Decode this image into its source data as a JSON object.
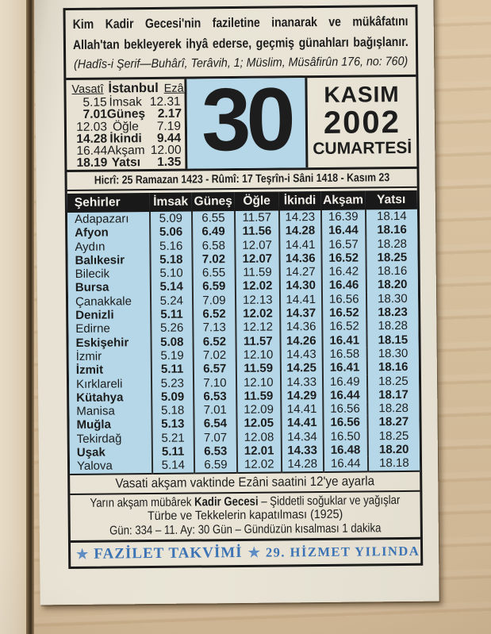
{
  "hadith": {
    "line1": "Kim Kadir Gecesi'nin faziletine inanarak ve mükâfatını",
    "line2": "Allah'tan bekleyerek ihyâ ederse, geçmiş günahları bağışlanır.",
    "source": "(Hadîs-i Şerif—Buhârî, Terâvih, 1; Müslim, Müsâfirûn 176, no: 760)"
  },
  "istanbul": {
    "col_left": "Vasatî",
    "col_mid": "İstanbul",
    "col_right": "Ezânî",
    "rows": [
      {
        "vasati": "5.15",
        "name": "İmsak",
        "ezani": "12.31",
        "bold": false
      },
      {
        "vasati": "7.01",
        "name": "Güneş",
        "ezani": "2.17",
        "bold": true
      },
      {
        "vasati": "12.03",
        "name": "Öğle",
        "ezani": "7.19",
        "bold": false
      },
      {
        "vasati": "14.28",
        "name": "İkindi",
        "ezani": "9.44",
        "bold": true
      },
      {
        "vasati": "16.44",
        "name": "Akşam",
        "ezani": "12.00",
        "bold": false
      },
      {
        "vasati": "18.19",
        "name": "Yatsı",
        "ezani": "1.35",
        "bold": true
      }
    ]
  },
  "date": {
    "day": "30",
    "month": "KASIM",
    "year": "2002",
    "weekday": "CUMARTESİ"
  },
  "hicri_line": "Hicrî: 25 Ramazan 1423 - Rûmî: 17 Teşrîn-i Sâni 1418 - Kasım 23",
  "cities": {
    "headers": [
      "Şehirler",
      "İmsak",
      "Güneş",
      "Öğle",
      "İkindi",
      "Akşam",
      "Yatsı"
    ],
    "rows": [
      {
        "name": "Adapazarı",
        "times": [
          "5.09",
          "6.55",
          "11.57",
          "14.23",
          "16.39",
          "18.14"
        ],
        "bold": false
      },
      {
        "name": "Afyon",
        "times": [
          "5.06",
          "6.49",
          "11.56",
          "14.28",
          "16.44",
          "18.16"
        ],
        "bold": true
      },
      {
        "name": "Aydın",
        "times": [
          "5.16",
          "6.58",
          "12.07",
          "14.41",
          "16.57",
          "18.28"
        ],
        "bold": false
      },
      {
        "name": "Balıkesir",
        "times": [
          "5.18",
          "7.02",
          "12.07",
          "14.36",
          "16.52",
          "18.25"
        ],
        "bold": true
      },
      {
        "name": "Bilecik",
        "times": [
          "5.10",
          "6.55",
          "11.59",
          "14.27",
          "16.42",
          "18.16"
        ],
        "bold": false
      },
      {
        "name": "Bursa",
        "times": [
          "5.14",
          "6.59",
          "12.02",
          "14.30",
          "16.46",
          "18.20"
        ],
        "bold": true
      },
      {
        "name": "Çanakkale",
        "times": [
          "5.24",
          "7.09",
          "12.13",
          "14.41",
          "16.56",
          "18.30"
        ],
        "bold": false
      },
      {
        "name": "Denizli",
        "times": [
          "5.11",
          "6.52",
          "12.02",
          "14.37",
          "16.52",
          "18.23"
        ],
        "bold": true
      },
      {
        "name": "Edirne",
        "times": [
          "5.26",
          "7.13",
          "12.12",
          "14.36",
          "16.52",
          "18.28"
        ],
        "bold": false
      },
      {
        "name": "Eskişehir",
        "times": [
          "5.08",
          "6.52",
          "11.57",
          "14.26",
          "16.41",
          "18.15"
        ],
        "bold": true
      },
      {
        "name": "İzmir",
        "times": [
          "5.19",
          "7.02",
          "12.10",
          "14.43",
          "16.58",
          "18.30"
        ],
        "bold": false
      },
      {
        "name": "İzmit",
        "times": [
          "5.11",
          "6.57",
          "11.59",
          "14.25",
          "16.41",
          "18.16"
        ],
        "bold": true
      },
      {
        "name": "Kırklareli",
        "times": [
          "5.23",
          "7.10",
          "12.10",
          "14.33",
          "16.49",
          "18.25"
        ],
        "bold": false
      },
      {
        "name": "Kütahya",
        "times": [
          "5.09",
          "6.53",
          "11.59",
          "14.29",
          "16.44",
          "18.17"
        ],
        "bold": true
      },
      {
        "name": "Manisa",
        "times": [
          "5.18",
          "7.01",
          "12.09",
          "14.41",
          "16.56",
          "18.28"
        ],
        "bold": false
      },
      {
        "name": "Muğla",
        "times": [
          "5.13",
          "6.54",
          "12.05",
          "14.41",
          "16.56",
          "18.27"
        ],
        "bold": true
      },
      {
        "name": "Tekirdağ",
        "times": [
          "5.21",
          "7.07",
          "12.08",
          "14.34",
          "16.50",
          "18.25"
        ],
        "bold": false
      },
      {
        "name": "Uşak",
        "times": [
          "5.11",
          "6.53",
          "12.01",
          "14.33",
          "16.48",
          "18.20"
        ],
        "bold": true
      },
      {
        "name": "Yalova",
        "times": [
          "5.14",
          "6.59",
          "12.02",
          "14.28",
          "16.44",
          "18.18"
        ],
        "bold": false
      }
    ]
  },
  "note": "Vasati akşam vaktinde Ezâni saatini 12'ye ayarla",
  "info": {
    "line1_prefix": "Yarın akşam mübârek ",
    "line1_bold": "Kadir Gecesi",
    "line1_suffix": " – Şiddetli soğuklar ve yağışlar",
    "line2": "Türbe ve Tekkelerin kapatılması (1925)",
    "line3": "Gün: 334 – 11. Ay: 30 Gün – Gündüzün kısalması 1 dakika"
  },
  "footer": {
    "star": "★",
    "brand": "FAZİLET TAKVİMİ",
    "right": "29. HİZMET YILINDA"
  },
  "colors": {
    "highlight_blue": "#b5d7e7",
    "header_bar_black": "#191919",
    "footer_blue": "#3c73b4",
    "paper_cream": "#e7e2d4",
    "wood_tan": "#d6c09e"
  }
}
